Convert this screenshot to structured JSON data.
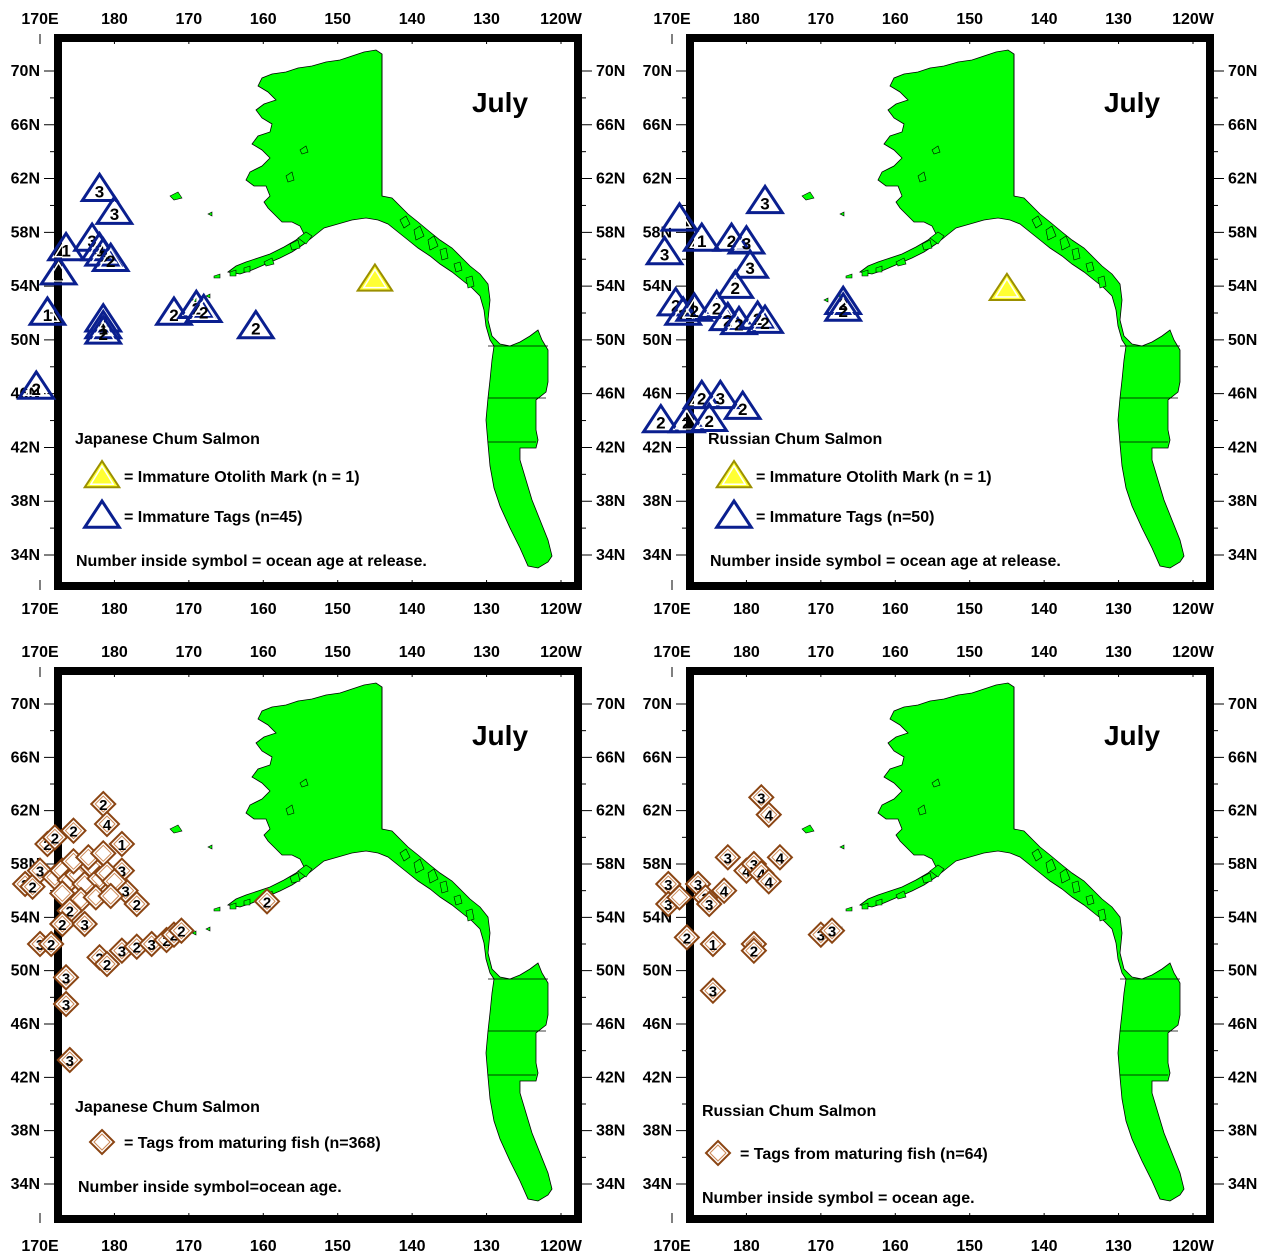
{
  "lon_labels": [
    "170E",
    "180",
    "170",
    "160",
    "150",
    "140",
    "130",
    "120W"
  ],
  "lat_labels": [
    "70N",
    "66N",
    "62N",
    "58N",
    "54N",
    "50N",
    "46N",
    "42N",
    "38N",
    "34N"
  ],
  "lon_values": [
    170,
    180,
    190,
    200,
    210,
    220,
    230,
    240
  ],
  "lat_values": [
    70,
    66,
    62,
    58,
    54,
    50,
    46,
    42,
    38,
    34
  ],
  "colors": {
    "land": "#00ff00",
    "immature_tag": "#0a1f8f",
    "otolith_fill": "#ffff33",
    "otolith_stroke": "#9b8f00",
    "mature_tag": "#8b4513",
    "frame": "#000000"
  },
  "panels": [
    {
      "month": "July",
      "population": "Japanese Chum Salmon",
      "legend": [
        {
          "symbol": "otolith-triangle",
          "text": "=  Immature Otolith Mark (n = 1)"
        },
        {
          "symbol": "immature-triangle",
          "text": "=  Immature Tags (n=45)"
        }
      ],
      "note": "Number inside symbol = ocean age at release.",
      "otolith_marks": [
        {
          "lon": 215,
          "lat": 54.5,
          "age": ""
        }
      ],
      "tags": [
        {
          "lon": 169.5,
          "lat": 46.5,
          "age": "2"
        },
        {
          "lon": 171,
          "lat": 52,
          "age": "1"
        },
        {
          "lon": 172.5,
          "lat": 55,
          "age": "1"
        },
        {
          "lon": 173.5,
          "lat": 56.8,
          "age": "1"
        },
        {
          "lon": 178,
          "lat": 61.2,
          "age": "3"
        },
        {
          "lon": 180,
          "lat": 59.5,
          "age": "3"
        },
        {
          "lon": 177,
          "lat": 57.5,
          "age": "3"
        },
        {
          "lon": 178,
          "lat": 56.8,
          "age": "3"
        },
        {
          "lon": 178.5,
          "lat": 56.4,
          "age": "3"
        },
        {
          "lon": 179.5,
          "lat": 56,
          "age": "2"
        },
        {
          "lon": 178.5,
          "lat": 51.5,
          "age": "2"
        },
        {
          "lon": 178.5,
          "lat": 51,
          "age": "1"
        },
        {
          "lon": 178.5,
          "lat": 50.6,
          "age": "2"
        },
        {
          "lon": 188,
          "lat": 52,
          "age": "2"
        },
        {
          "lon": 191,
          "lat": 52.5,
          "age": "2"
        },
        {
          "lon": 192,
          "lat": 52.2,
          "age": "2"
        },
        {
          "lon": 199,
          "lat": 51,
          "age": "2"
        }
      ]
    },
    {
      "month": "July",
      "population": "Russian Chum Salmon",
      "legend": [
        {
          "symbol": "otolith-triangle",
          "text": "=  Immature Otolith Mark (n = 1)"
        },
        {
          "symbol": "immature-triangle",
          "text": "=  Immature Tags (n=50)"
        }
      ],
      "note": "Number inside symbol = ocean age at release.",
      "otolith_marks": [
        {
          "lon": 215,
          "lat": 53.8,
          "age": ""
        }
      ],
      "tags": [
        {
          "lon": 171,
          "lat": 59,
          "age": ""
        },
        {
          "lon": 169,
          "lat": 56.5,
          "age": "3"
        },
        {
          "lon": 174,
          "lat": 57.5,
          "age": "1"
        },
        {
          "lon": 178,
          "lat": 57.5,
          "age": "2"
        },
        {
          "lon": 180,
          "lat": 57.3,
          "age": "3"
        },
        {
          "lon": 182.5,
          "lat": 60.3,
          "age": "3"
        },
        {
          "lon": 180.5,
          "lat": 55.5,
          "age": "3"
        },
        {
          "lon": 178.5,
          "lat": 54,
          "age": "2"
        },
        {
          "lon": 170.5,
          "lat": 52.7,
          "age": "2"
        },
        {
          "lon": 171.5,
          "lat": 52,
          "age": "2"
        },
        {
          "lon": 173,
          "lat": 52.3,
          "age": "2"
        },
        {
          "lon": 176,
          "lat": 52.5,
          "age": "2"
        },
        {
          "lon": 177.5,
          "lat": 51.6,
          "age": "2"
        },
        {
          "lon": 179,
          "lat": 51.3,
          "age": "2"
        },
        {
          "lon": 181.5,
          "lat": 51.7,
          "age": "2"
        },
        {
          "lon": 182.5,
          "lat": 51.4,
          "age": "2"
        },
        {
          "lon": 193,
          "lat": 52.8,
          "age": "2"
        },
        {
          "lon": 193,
          "lat": 52.3,
          "age": "2"
        },
        {
          "lon": 174,
          "lat": 45.8,
          "age": "2"
        },
        {
          "lon": 176.5,
          "lat": 45.8,
          "age": "3"
        },
        {
          "lon": 179.5,
          "lat": 45,
          "age": "2"
        },
        {
          "lon": 168.5,
          "lat": 44,
          "age": "2"
        },
        {
          "lon": 172,
          "lat": 44,
          "age": "2"
        },
        {
          "lon": 175,
          "lat": 44.1,
          "age": "2"
        }
      ]
    },
    {
      "month": "July",
      "population": "Japanese Chum Salmon",
      "legend": [
        {
          "symbol": "mature-diamond",
          "text": "= Tags from maturing fish (n=368)"
        }
      ],
      "note": "Number inside symbol=ocean age.",
      "otolith_marks": [],
      "tags": [
        {
          "lon": 168,
          "lat": 56.5,
          "age": "3"
        },
        {
          "lon": 169,
          "lat": 56.3,
          "age": "2"
        },
        {
          "lon": 170,
          "lat": 57.5,
          "age": "3"
        },
        {
          "lon": 171,
          "lat": 59.5,
          "age": "2"
        },
        {
          "lon": 172,
          "lat": 60,
          "age": "2"
        },
        {
          "lon": 174.5,
          "lat": 60.5,
          "age": "2"
        },
        {
          "lon": 178.5,
          "lat": 62.5,
          "age": "2"
        },
        {
          "lon": 179,
          "lat": 61,
          "age": "4"
        },
        {
          "lon": 181,
          "lat": 59.5,
          "age": "1"
        },
        {
          "lon": 181,
          "lat": 57.5,
          "age": "3"
        },
        {
          "lon": 181.5,
          "lat": 56,
          "age": "3"
        },
        {
          "lon": 183,
          "lat": 55,
          "age": "2"
        },
        {
          "lon": 172,
          "lat": 57,
          "age": ""
        },
        {
          "lon": 173,
          "lat": 57.5,
          "age": ""
        },
        {
          "lon": 174,
          "lat": 56.8,
          "age": ""
        },
        {
          "lon": 175,
          "lat": 57.2,
          "age": ""
        },
        {
          "lon": 176,
          "lat": 56.5,
          "age": ""
        },
        {
          "lon": 177,
          "lat": 57.8,
          "age": ""
        },
        {
          "lon": 178,
          "lat": 56.9,
          "age": ""
        },
        {
          "lon": 179,
          "lat": 57.3,
          "age": ""
        },
        {
          "lon": 180,
          "lat": 56.7,
          "age": ""
        },
        {
          "lon": 174.5,
          "lat": 58.2,
          "age": ""
        },
        {
          "lon": 176.5,
          "lat": 58.5,
          "age": ""
        },
        {
          "lon": 178.5,
          "lat": 58.8,
          "age": ""
        },
        {
          "lon": 173,
          "lat": 55.8,
          "age": ""
        },
        {
          "lon": 175.5,
          "lat": 55.3,
          "age": ""
        },
        {
          "lon": 177.5,
          "lat": 55.5,
          "age": ""
        },
        {
          "lon": 179.5,
          "lat": 55.6,
          "age": ""
        },
        {
          "lon": 174,
          "lat": 54.5,
          "age": "2"
        },
        {
          "lon": 173,
          "lat": 53.5,
          "age": "2"
        },
        {
          "lon": 170,
          "lat": 52,
          "age": "3"
        },
        {
          "lon": 171.5,
          "lat": 52,
          "age": "2"
        },
        {
          "lon": 176,
          "lat": 53.5,
          "age": "3"
        },
        {
          "lon": 178,
          "lat": 51,
          "age": "2"
        },
        {
          "lon": 179,
          "lat": 50.5,
          "age": "2"
        },
        {
          "lon": 181,
          "lat": 51.5,
          "age": "3"
        },
        {
          "lon": 183,
          "lat": 51.8,
          "age": "2"
        },
        {
          "lon": 185,
          "lat": 52,
          "age": "3"
        },
        {
          "lon": 187,
          "lat": 52.3,
          "age": "2"
        },
        {
          "lon": 188,
          "lat": 52.7,
          "age": "2"
        },
        {
          "lon": 189,
          "lat": 53,
          "age": "2"
        },
        {
          "lon": 173.5,
          "lat": 49.5,
          "age": "3"
        },
        {
          "lon": 173.5,
          "lat": 47.5,
          "age": "3"
        },
        {
          "lon": 174,
          "lat": 43.3,
          "age": "3"
        },
        {
          "lon": 200.5,
          "lat": 55.2,
          "age": "2"
        }
      ]
    },
    {
      "month": "July",
      "population": "Russian Chum Salmon",
      "legend": [
        {
          "symbol": "mature-diamond",
          "text": "= Tags from maturing fish (n=64)"
        }
      ],
      "note": "Number inside symbol = ocean age.",
      "otolith_marks": [],
      "tags": [
        {
          "lon": 182,
          "lat": 63,
          "age": "3"
        },
        {
          "lon": 183,
          "lat": 61.7,
          "age": "4"
        },
        {
          "lon": 169.5,
          "lat": 56.5,
          "age": "3"
        },
        {
          "lon": 169.5,
          "lat": 55,
          "age": "3"
        },
        {
          "lon": 171,
          "lat": 55.5,
          "age": ""
        },
        {
          "lon": 173.5,
          "lat": 56.5,
          "age": "3"
        },
        {
          "lon": 174.5,
          "lat": 55.5,
          "age": "3"
        },
        {
          "lon": 175,
          "lat": 55,
          "age": "3"
        },
        {
          "lon": 177,
          "lat": 56,
          "age": "4"
        },
        {
          "lon": 177.5,
          "lat": 58.5,
          "age": "3"
        },
        {
          "lon": 180,
          "lat": 57.5,
          "age": "4"
        },
        {
          "lon": 181,
          "lat": 58,
          "age": "3"
        },
        {
          "lon": 182,
          "lat": 57.3,
          "age": "4"
        },
        {
          "lon": 183,
          "lat": 56.7,
          "age": "4"
        },
        {
          "lon": 184.5,
          "lat": 58.5,
          "age": "4"
        },
        {
          "lon": 172,
          "lat": 52.5,
          "age": "2"
        },
        {
          "lon": 175.5,
          "lat": 52,
          "age": "1"
        },
        {
          "lon": 181,
          "lat": 52,
          "age": "3"
        },
        {
          "lon": 181,
          "lat": 51.5,
          "age": "2"
        },
        {
          "lon": 190,
          "lat": 52.7,
          "age": "3"
        },
        {
          "lon": 191.5,
          "lat": 53,
          "age": "3"
        },
        {
          "lon": 175.5,
          "lat": 48.5,
          "age": "3"
        }
      ]
    }
  ]
}
